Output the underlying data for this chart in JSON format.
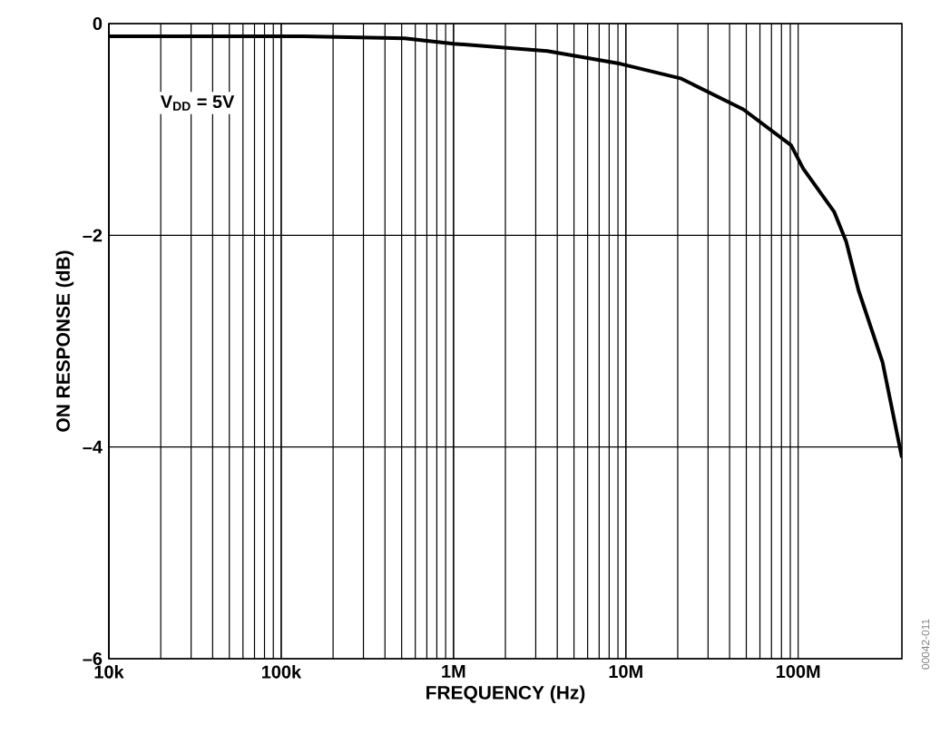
{
  "chart_data": {
    "type": "line",
    "xlabel": "FREQUENCY (Hz)",
    "ylabel": "ON RESPONSE (dB)",
    "log": "x",
    "grid": true,
    "marker": "none",
    "line_style": "solid",
    "xlim": [
      10000,
      400000000
    ],
    "ylim": [
      -6,
      0
    ],
    "xticks": [
      {
        "value": 10000,
        "label": "10k"
      },
      {
        "value": 100000,
        "label": "100k"
      },
      {
        "value": 1000000,
        "label": "1M"
      },
      {
        "value": 10000000,
        "label": "10M"
      },
      {
        "value": 100000000,
        "label": "100M"
      }
    ],
    "yticks": [
      {
        "value": 0,
        "label": "0"
      },
      {
        "value": -2,
        "label": "–2"
      },
      {
        "value": -4,
        "label": "–4"
      },
      {
        "value": -6,
        "label": "–6"
      }
    ],
    "annotations": [
      "V$_{DD}$ = 5V",
      "00042-011"
    ],
    "series": [
      {
        "color": "#000000",
        "x": [
          10000,
          135000,
          520000,
          1000000,
          3500000,
          9300000,
          21000000,
          48000000,
          91000000,
          107000000,
          162000000,
          190000000,
          224000000,
          309000000,
          400000000
        ],
        "values": [
          -0.12,
          -0.12,
          -0.14,
          -0.19,
          -0.26,
          -0.38,
          -0.52,
          -0.81,
          -1.15,
          -1.37,
          -1.78,
          -2.06,
          -2.52,
          -3.2,
          -4.1
        ]
      }
    ]
  }
}
